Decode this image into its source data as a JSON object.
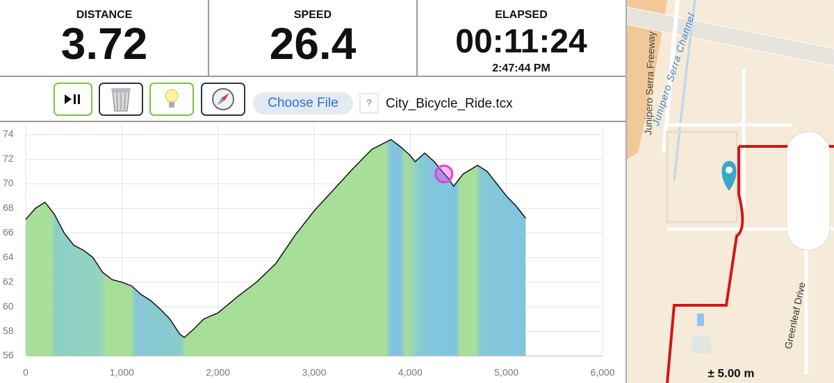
{
  "stats": [
    {
      "label": "DISTANCE",
      "value": "3.72"
    },
    {
      "label": "SPEED",
      "value": "26.4"
    },
    {
      "label": "ELAPSED",
      "value": "00:11:24",
      "sub": "2:47:44 PM"
    }
  ],
  "toolbar": {
    "choose_file": "Choose File",
    "help": "?",
    "file_name": "City_Bicycle_Ride.tcx"
  },
  "chart_data": {
    "type": "area",
    "color": "#a8df98",
    "line_color": "#111111",
    "x": [
      0,
      100,
      200,
      300,
      400,
      450,
      500,
      600,
      700,
      800,
      900,
      1000,
      1100,
      1200,
      1300,
      1400,
      1500,
      1600,
      1650,
      1750,
      1850,
      2000,
      2200,
      2400,
      2600,
      2800,
      3000,
      3200,
      3400,
      3600,
      3800,
      3900,
      4000,
      4050,
      4150,
      4250,
      4300,
      4400,
      4450,
      4550,
      4700,
      4800,
      4900,
      5000,
      5100,
      5200
    ],
    "values": [
      67.1,
      68,
      68.5,
      67.5,
      66,
      65.5,
      65,
      64.6,
      64,
      62.8,
      62.2,
      62,
      61.7,
      61,
      60.5,
      59.8,
      59,
      57.8,
      57.5,
      58.2,
      59,
      59.5,
      60.8,
      62,
      63.5,
      65.8,
      67.8,
      69.5,
      71.2,
      72.8,
      73.6,
      73,
      72.3,
      71.8,
      72.5,
      71.8,
      71.3,
      70.4,
      69.8,
      70.8,
      71.5,
      71,
      70,
      69,
      68.2,
      67.2
    ],
    "xlim": [
      0,
      6000
    ],
    "xticks": [
      0,
      {
        "value": 1000,
        "label": "1,000"
      },
      {
        "value": 2000,
        "label": "2,000"
      },
      {
        "value": 3000,
        "label": "3,000"
      },
      {
        "value": 4000,
        "label": "4,000"
      },
      {
        "value": 5000,
        "label": "5,000"
      },
      {
        "value": 6000,
        "label": "6,000"
      }
    ],
    "ylim": [
      56,
      74
    ],
    "yticks": [
      56,
      58,
      60,
      62,
      64,
      66,
      68,
      70,
      72,
      74
    ],
    "grid": true,
    "cursor": {
      "x": 4350,
      "y": 70.8,
      "color": "#e040e0"
    }
  },
  "map": {
    "freeway": "Junipero Serra Freeway",
    "channel": "Junipero Serra Channel",
    "street": "Greenleaf Drive",
    "accuracy": "± 5.00 m"
  }
}
